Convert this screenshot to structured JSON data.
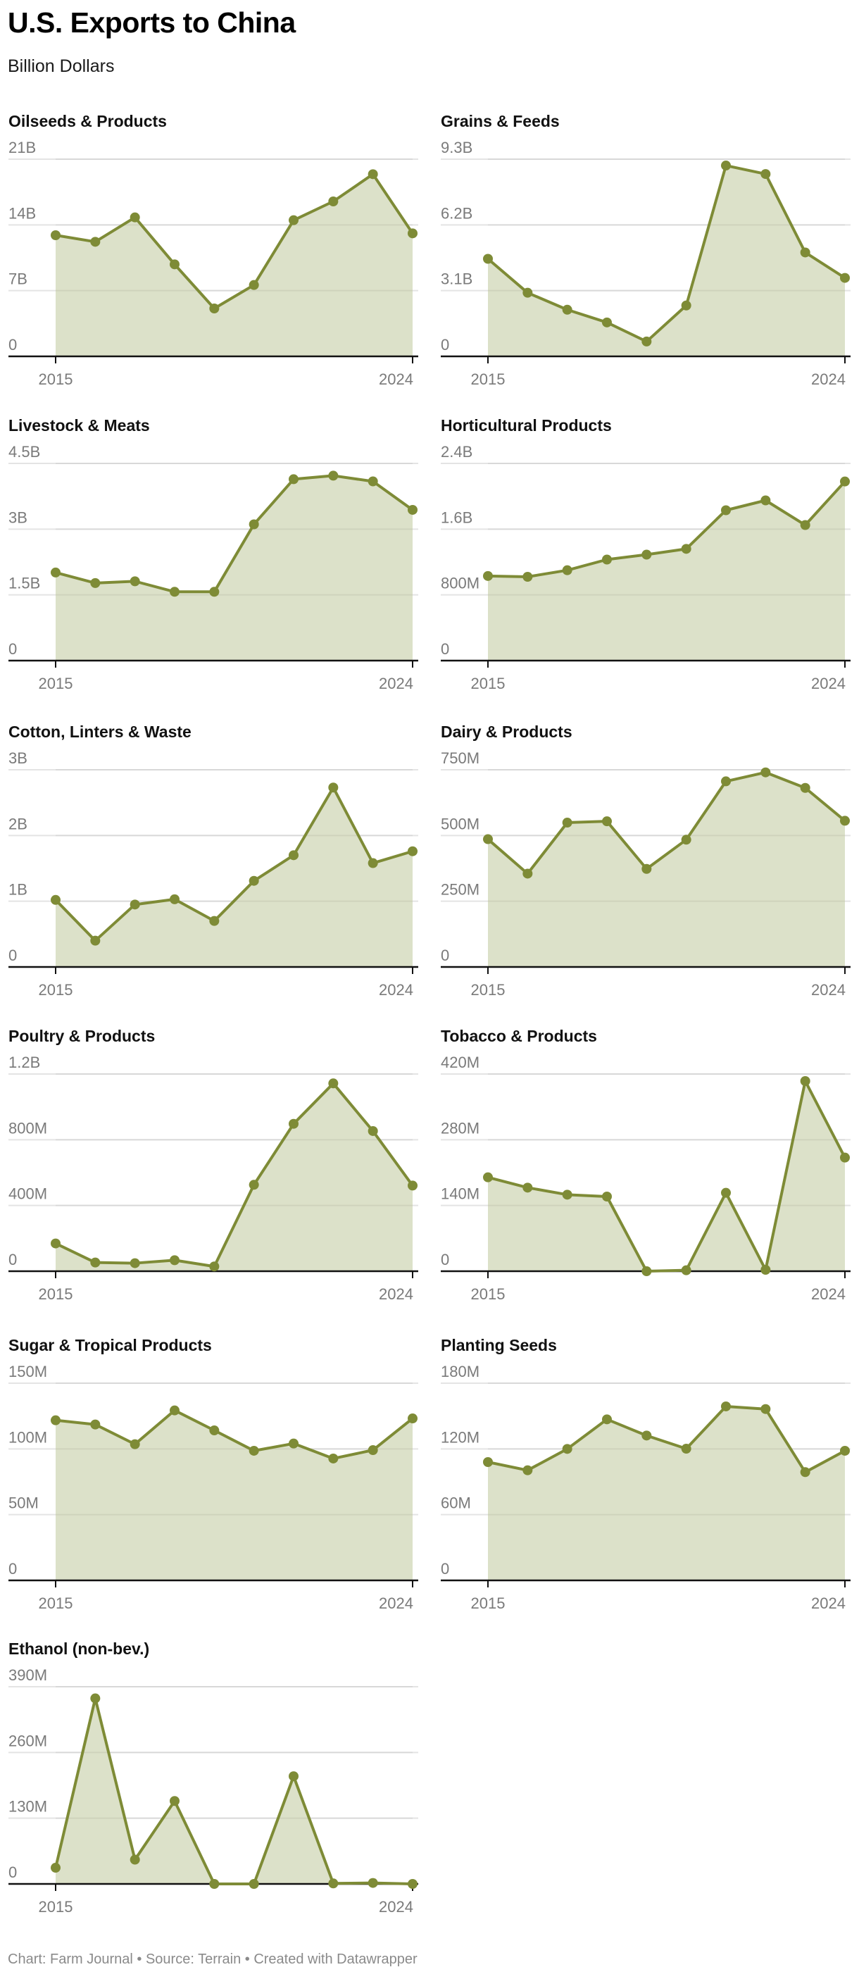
{
  "header": {
    "title": "U.S. Exports to China",
    "subtitle": "Billion Dollars"
  },
  "footer": {
    "text": "Chart: Farm Journal • Source: Terrain • Created with Datawrapper"
  },
  "colors": {
    "line": "#7e8b36",
    "fill": "#d9dec4",
    "grid": "#e4e4e4",
    "axis": "#111111",
    "tick_label": "#7a7a7a"
  },
  "chart_data": [
    {
      "type": "area",
      "title": "Oilseeds & Products",
      "x": [
        2015,
        2016,
        2017,
        2018,
        2019,
        2020,
        2021,
        2022,
        2023,
        2024
      ],
      "x_tick_labels": [
        "2015",
        "2024"
      ],
      "y_ticks": [
        0,
        7,
        14,
        21
      ],
      "y_tick_labels": [
        "0",
        "7B",
        "14B",
        "21B"
      ],
      "ylim": [
        0,
        21
      ],
      "unit": "B",
      "values": [
        12.9,
        12.2,
        14.8,
        9.8,
        5.1,
        7.6,
        14.5,
        16.5,
        19.4,
        13.1
      ]
    },
    {
      "type": "area",
      "title": "Grains & Feeds",
      "x": [
        2015,
        2016,
        2017,
        2018,
        2019,
        2020,
        2021,
        2022,
        2023,
        2024
      ],
      "x_tick_labels": [
        "2015",
        "2024"
      ],
      "y_ticks": [
        0,
        3.1,
        6.2,
        9.3
      ],
      "y_tick_labels": [
        "0",
        "3.1B",
        "6.2B",
        "9.3B"
      ],
      "ylim": [
        0,
        9.3
      ],
      "unit": "B",
      "values": [
        4.6,
        3.0,
        2.2,
        1.6,
        0.7,
        2.4,
        9.0,
        8.6,
        4.9,
        3.7
      ]
    },
    {
      "type": "area",
      "title": "Livestock & Meats",
      "x": [
        2015,
        2016,
        2017,
        2018,
        2019,
        2020,
        2021,
        2022,
        2023,
        2024
      ],
      "x_tick_labels": [
        "2015",
        "2024"
      ],
      "y_ticks": [
        0,
        1.5,
        3,
        4.5
      ],
      "y_tick_labels": [
        "0",
        "1.5B",
        "3B",
        "4.5B"
      ],
      "ylim": [
        0,
        4.5
      ],
      "unit": "B",
      "values": [
        2.01,
        1.77,
        1.81,
        1.57,
        1.57,
        3.11,
        4.14,
        4.22,
        4.09,
        3.44
      ]
    },
    {
      "type": "area",
      "title": "Horticultural Products",
      "x": [
        2015,
        2016,
        2017,
        2018,
        2019,
        2020,
        2021,
        2022,
        2023,
        2024
      ],
      "x_tick_labels": [
        "2015",
        "2024"
      ],
      "y_ticks": [
        0,
        0.8,
        1.6,
        2.4
      ],
      "y_tick_labels": [
        "0",
        "800M",
        "1.6B",
        "2.4B"
      ],
      "ylim": [
        0,
        2.4
      ],
      "unit": "B",
      "values": [
        1.03,
        1.02,
        1.1,
        1.23,
        1.29,
        1.36,
        1.83,
        1.95,
        1.65,
        2.18
      ]
    },
    {
      "type": "area",
      "title": "Cotton, Linters & Waste",
      "x": [
        2015,
        2016,
        2017,
        2018,
        2019,
        2020,
        2021,
        2022,
        2023,
        2024
      ],
      "x_tick_labels": [
        "2015",
        "2024"
      ],
      "y_ticks": [
        0,
        1,
        2,
        3
      ],
      "y_tick_labels": [
        "0",
        "1B",
        "2B",
        "3B"
      ],
      "ylim": [
        0,
        3
      ],
      "unit": "B",
      "values": [
        1.02,
        0.4,
        0.95,
        1.03,
        0.7,
        1.31,
        1.7,
        2.73,
        1.58,
        1.76
      ]
    },
    {
      "type": "area",
      "title": "Dairy & Products",
      "x": [
        2015,
        2016,
        2017,
        2018,
        2019,
        2020,
        2021,
        2022,
        2023,
        2024
      ],
      "x_tick_labels": [
        "2015",
        "2024"
      ],
      "y_ticks": [
        0,
        250,
        500,
        750
      ],
      "y_tick_labels": [
        "0",
        "250M",
        "500M",
        "750M"
      ],
      "ylim": [
        0,
        750
      ],
      "unit": "M",
      "values": [
        486,
        355,
        549,
        554,
        373,
        484,
        706,
        740,
        681,
        556
      ]
    },
    {
      "type": "area",
      "title": "Poultry & Products",
      "x": [
        2015,
        2016,
        2017,
        2018,
        2019,
        2020,
        2021,
        2022,
        2023,
        2024
      ],
      "x_tick_labels": [
        "2015",
        "2024"
      ],
      "y_ticks": [
        0,
        400,
        800,
        1200
      ],
      "y_tick_labels": [
        "0",
        "400M",
        "800M",
        "1.2B"
      ],
      "ylim": [
        0,
        1200
      ],
      "unit": "M",
      "values": [
        169,
        53,
        49,
        67,
        29,
        526,
        897,
        1143,
        853,
        521
      ]
    },
    {
      "type": "area",
      "title": "Tobacco & Products",
      "x": [
        2015,
        2016,
        2017,
        2018,
        2019,
        2020,
        2021,
        2022,
        2023,
        2024
      ],
      "x_tick_labels": [
        "2015",
        "2024"
      ],
      "y_ticks": [
        0,
        140,
        280,
        420
      ],
      "y_tick_labels": [
        "0",
        "140M",
        "280M",
        "420M"
      ],
      "ylim": [
        0,
        420
      ],
      "unit": "M",
      "values": [
        200,
        178,
        163,
        159,
        0,
        2,
        167,
        3,
        405,
        242
      ]
    },
    {
      "type": "area",
      "title": "Sugar & Tropical Products",
      "x": [
        2015,
        2016,
        2017,
        2018,
        2019,
        2020,
        2021,
        2022,
        2023,
        2024
      ],
      "x_tick_labels": [
        "2015",
        "2024"
      ],
      "y_ticks": [
        0,
        50,
        100,
        150
      ],
      "y_tick_labels": [
        "0",
        "50M",
        "100M",
        "150M"
      ],
      "ylim": [
        0,
        150
      ],
      "unit": "M",
      "values": [
        121.8,
        118.6,
        103.6,
        129.3,
        114.1,
        98.6,
        104.1,
        92.7,
        99.1,
        123.2
      ]
    },
    {
      "type": "area",
      "title": "Planting Seeds",
      "x": [
        2015,
        2016,
        2017,
        2018,
        2019,
        2020,
        2021,
        2022,
        2023,
        2024
      ],
      "x_tick_labels": [
        "2015",
        "2024"
      ],
      "y_ticks": [
        0,
        60,
        120,
        180
      ],
      "y_tick_labels": [
        "0",
        "60M",
        "120M",
        "180M"
      ],
      "ylim": [
        0,
        180
      ],
      "unit": "M",
      "values": [
        108,
        100.5,
        120,
        147,
        132.2,
        120.2,
        158.8,
        156.4,
        98.8,
        118.3
      ]
    },
    {
      "type": "area",
      "title": "Ethanol (non-bev.)",
      "x": [
        2015,
        2016,
        2017,
        2018,
        2019,
        2020,
        2021,
        2022,
        2023,
        2024
      ],
      "x_tick_labels": [
        "2015",
        "2024"
      ],
      "y_ticks": [
        0,
        130,
        260,
        390
      ],
      "y_tick_labels": [
        "0",
        "130M",
        "260M",
        "390M"
      ],
      "ylim": [
        0,
        390
      ],
      "unit": "M",
      "values": [
        32,
        367,
        48,
        164,
        0,
        0,
        213,
        1,
        2,
        0
      ]
    }
  ]
}
